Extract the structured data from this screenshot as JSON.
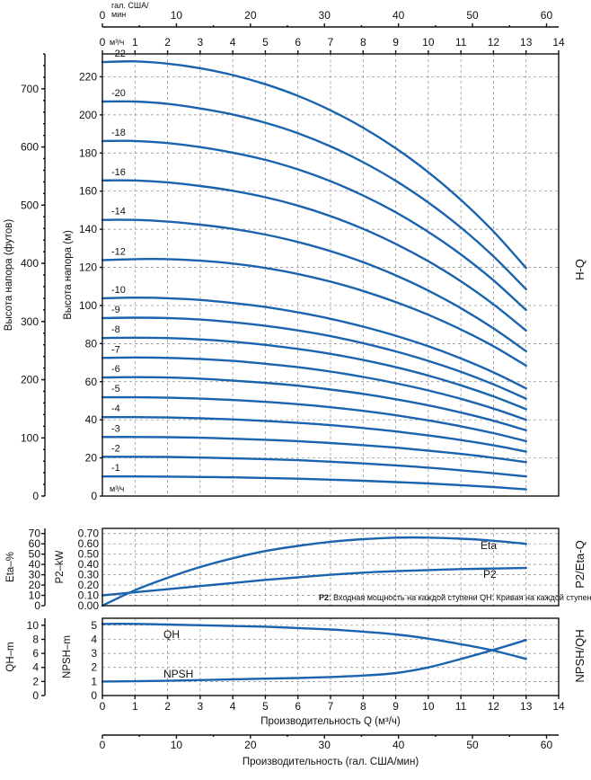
{
  "chart_data": [
    {
      "id": "hq",
      "type": "line",
      "section_label": "H-Q",
      "y_axis_outer": {
        "label": "Высота напора (футов)",
        "range": [
          0,
          760
        ],
        "ticks": [
          0,
          100,
          200,
          300,
          400,
          500,
          600,
          700
        ]
      },
      "y_axis_inner": {
        "label": "Высота напора (м)",
        "range": [
          0,
          232
        ],
        "ticks": [
          0,
          20,
          40,
          60,
          80,
          100,
          120,
          140,
          160,
          180,
          200,
          220
        ]
      },
      "x_axis_top_secondary": {
        "label": "гал. США/ мин",
        "range": [
          0,
          61.64
        ],
        "ticks": [
          0,
          10,
          20,
          30,
          40,
          50,
          60
        ]
      },
      "x_axis_top": {
        "unit": "м³/ч",
        "range": [
          0,
          14
        ],
        "ticks": [
          0,
          1,
          2,
          3,
          4,
          5,
          6,
          7,
          8,
          9,
          10,
          11,
          12,
          13,
          14
        ]
      },
      "x_axis_bottom_unit": "м³/ч",
      "grid": true,
      "x": [
        0,
        1,
        2,
        3,
        4,
        5,
        6,
        7,
        8,
        9,
        10,
        11,
        12,
        13
      ],
      "series": [
        {
          "name": "-1",
          "values": [
            10.3,
            10.3,
            10.2,
            10.0,
            9.8,
            9.5,
            9.1,
            8.6,
            8.0,
            7.3,
            6.6,
            5.7,
            4.7,
            3.5
          ]
        },
        {
          "name": "-2",
          "values": [
            20.6,
            20.6,
            20.5,
            20.2,
            19.8,
            19.4,
            18.8,
            18.0,
            17.1,
            16.1,
            14.9,
            13.5,
            12.0,
            10.3
          ]
        },
        {
          "name": "-3",
          "values": [
            31.0,
            31.0,
            30.9,
            30.6,
            30.1,
            29.5,
            28.8,
            27.8,
            26.7,
            25.4,
            23.8,
            22.1,
            20.1,
            17.8
          ]
        },
        {
          "name": "-4",
          "values": [
            41.4,
            41.4,
            41.2,
            40.8,
            40.2,
            39.4,
            38.4,
            37.2,
            35.7,
            33.9,
            31.8,
            29.4,
            26.6,
            23.3
          ]
        },
        {
          "name": "-5",
          "values": [
            51.8,
            51.8,
            51.6,
            51.1,
            50.4,
            49.4,
            48.2,
            46.6,
            44.7,
            42.4,
            39.7,
            36.6,
            33.0,
            28.8
          ]
        },
        {
          "name": "-6",
          "values": [
            62.2,
            62.4,
            62.2,
            61.6,
            60.6,
            59.4,
            57.9,
            55.9,
            53.6,
            50.8,
            47.6,
            43.8,
            39.5,
            34.5
          ]
        },
        {
          "name": "-7",
          "values": [
            72.5,
            72.7,
            72.5,
            71.9,
            70.9,
            69.4,
            67.6,
            65.3,
            62.5,
            59.2,
            55.4,
            51.0,
            45.9,
            40.0
          ]
        },
        {
          "name": "-8",
          "values": [
            82.9,
            83.1,
            82.9,
            82.2,
            81.0,
            79.3,
            77.2,
            74.6,
            71.4,
            67.6,
            63.2,
            58.1,
            52.3,
            45.6
          ]
        },
        {
          "name": "-9",
          "values": [
            93.4,
            93.6,
            93.4,
            92.6,
            91.2,
            89.3,
            86.9,
            83.9,
            80.2,
            75.9,
            70.9,
            65.2,
            58.6,
            51.1
          ]
        },
        {
          "name": "-10",
          "values": [
            103.8,
            104.1,
            103.8,
            102.9,
            101.3,
            99.2,
            96.4,
            93.0,
            88.9,
            84.1,
            78.6,
            72.2,
            64.9,
            56.5
          ]
        },
        {
          "name": "-12",
          "values": [
            123.8,
            124.3,
            124.3,
            123.5,
            122.0,
            119.7,
            116.5,
            112.5,
            107.6,
            101.8,
            95.1,
            87.4,
            78.6,
            68.4
          ]
        },
        {
          "name": "-14",
          "values": [
            144.9,
            144.9,
            144.0,
            142.4,
            140.2,
            137.2,
            133.3,
            128.5,
            122.7,
            115.8,
            107.8,
            98.6,
            88.0,
            76.0
          ]
        },
        {
          "name": "-16",
          "values": [
            165.6,
            165.6,
            164.6,
            162.7,
            160.2,
            156.8,
            152.4,
            146.9,
            140.2,
            132.3,
            123.2,
            112.7,
            100.6,
            86.8
          ]
        },
        {
          "name": "-18",
          "values": [
            186.3,
            186.3,
            185.2,
            183.1,
            180.2,
            176.4,
            171.4,
            165.2,
            157.7,
            148.9,
            138.6,
            126.8,
            113.2,
            97.6
          ]
        },
        {
          "name": "-20",
          "values": [
            207.0,
            207.0,
            205.8,
            203.4,
            200.2,
            195.9,
            190.4,
            183.5,
            175.2,
            165.4,
            154.0,
            140.9,
            125.8,
            108.5
          ]
        },
        {
          "name": "-22",
          "values": [
            227.7,
            228.1,
            226.9,
            224.5,
            220.9,
            216.1,
            210.0,
            202.4,
            193.3,
            182.5,
            169.9,
            155.4,
            138.8,
            119.7
          ]
        }
      ]
    },
    {
      "id": "p2eta",
      "type": "line",
      "section_label": "P2/Eta-Q",
      "y_axis_outer": {
        "label": "Eta–%",
        "range": [
          0,
          75
        ],
        "ticks": [
          0,
          10,
          20,
          30,
          40,
          50,
          60,
          70
        ]
      },
      "y_axis_inner": {
        "label": "P2–kW",
        "range": [
          0,
          0.75
        ],
        "ticks": [
          "0.00",
          "0.10",
          "0.20",
          "0.30",
          "0.40",
          "0.50",
          "0.60",
          "0.70"
        ]
      },
      "x_axis_unit": "м³/ч",
      "grid": true,
      "note_bold": "P2",
      "note_rest": ": Входная мощность на каждой ступени QH: Кривая на каждой ступени",
      "series": [
        {
          "name": "Eta",
          "x": [
            0,
            1,
            2,
            3,
            4,
            5,
            6,
            7,
            8,
            9,
            10,
            11,
            12,
            13
          ],
          "values": [
            0,
            15,
            27,
            37.5,
            46,
            53,
            58,
            62,
            64.5,
            66,
            66,
            65,
            63,
            60
          ]
        },
        {
          "name": "P2",
          "x": [
            0,
            1,
            2,
            3,
            4,
            5,
            6,
            7,
            8,
            9,
            10,
            11,
            12,
            13
          ],
          "values": [
            0.1,
            0.13,
            0.16,
            0.19,
            0.22,
            0.25,
            0.275,
            0.3,
            0.32,
            0.335,
            0.345,
            0.355,
            0.36,
            0.365
          ]
        }
      ]
    },
    {
      "id": "npshqh",
      "type": "line",
      "section_label": "NPSH/QH",
      "y_axis_outer": {
        "label": "QH–m",
        "range": [
          0,
          11
        ],
        "ticks": [
          0,
          2,
          4,
          6,
          8,
          10
        ]
      },
      "y_axis_inner": {
        "label": "NPSH–m",
        "range": [
          0,
          5.5
        ],
        "ticks": [
          0,
          1,
          2,
          3,
          4,
          5
        ]
      },
      "x_axis": {
        "label": "Производительность Q (м³/ч)",
        "range": [
          0,
          14
        ],
        "ticks": [
          0,
          1,
          2,
          3,
          4,
          5,
          6,
          7,
          8,
          9,
          10,
          11,
          12,
          13,
          14
        ]
      },
      "x_axis_secondary": {
        "label": "Производительность (гал. США/мин)",
        "range": [
          0,
          61.64
        ],
        "ticks": [
          0,
          10,
          20,
          30,
          40,
          50,
          60
        ]
      },
      "grid": true,
      "series": [
        {
          "name": "QH",
          "x": [
            0,
            1,
            2,
            3,
            4,
            5,
            6,
            7,
            8,
            9,
            10,
            11,
            12,
            13
          ],
          "values": [
            5.1,
            5.1,
            5.05,
            5.0,
            4.95,
            4.9,
            4.8,
            4.7,
            4.55,
            4.35,
            4.05,
            3.65,
            3.2,
            2.6
          ]
        },
        {
          "name": "NPSH",
          "x": [
            0,
            1,
            2,
            3,
            4,
            5,
            6,
            7,
            8,
            9,
            10,
            11,
            12,
            13
          ],
          "values": [
            1.0,
            1.02,
            1.05,
            1.1,
            1.15,
            1.2,
            1.25,
            1.32,
            1.42,
            1.6,
            2.0,
            2.6,
            3.25,
            3.95
          ]
        }
      ]
    }
  ]
}
